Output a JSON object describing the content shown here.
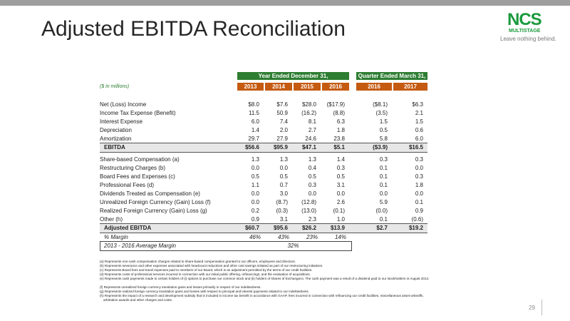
{
  "header": {
    "title": "Adjusted EBITDA Reconciliation",
    "logo": {
      "name": "NCS",
      "subname": "MULTISTAGE",
      "tagline": "Leave nothing behind."
    }
  },
  "table": {
    "units": "($ in millions)",
    "column_groups": [
      "Year Ended December 31,",
      "Quarter Ended March 31,"
    ],
    "columns": [
      "2013",
      "2014",
      "2015",
      "2016",
      "2016",
      "2017"
    ],
    "rows": [
      [
        "Net (Loss) Income",
        "$8.0",
        "$7.6",
        "$28.0",
        "($17.9)",
        "($8.1)",
        "$6.3"
      ],
      [
        "Income Tax Expense (Benefit)",
        "11.5",
        "50.9",
        "(16.2)",
        "(8.8)",
        "(3.5)",
        "2.1"
      ],
      [
        "Interest Expense",
        "6.0",
        "7.4",
        "8.1",
        "6.3",
        "1.5",
        "1.5"
      ],
      [
        "Depreciation",
        "1.4",
        "2.0",
        "2.7",
        "1.8",
        "0.5",
        "0.6"
      ],
      [
        "Amortization",
        "29.7",
        "27.9",
        "24.6",
        "23.8",
        "5.8",
        "6.0"
      ],
      [
        "EBITDA",
        "$56.6",
        "$95.9",
        "$47.1",
        "$5.1",
        "($3.9)",
        "$16.5"
      ],
      [
        "Share-based Compensation (a)",
        "1.3",
        "1.3",
        "1.3",
        "1.4",
        "0.3",
        "0.3"
      ],
      [
        "Restructuring Charges (b)",
        "0.0",
        "0.0",
        "0.4",
        "0.3",
        "0.1",
        "0.0"
      ],
      [
        "Board Fees and Expenses (c)",
        "0.5",
        "0.5",
        "0.5",
        "0.5",
        "0.1",
        "0.3"
      ],
      [
        "Professional Fees (d)",
        "1.1",
        "0.7",
        "0.3",
        "3.1",
        "0.1",
        "1.8"
      ],
      [
        "Dividends Treated as Compensation (e)",
        "0.0",
        "3.0",
        "0.0",
        "0.0",
        "0.0",
        "0.0"
      ],
      [
        "Unrealized Foreign Currency (Gain) Loss (f)",
        "0.0",
        "(8.7)",
        "(12.8)",
        "2.6",
        "5.9",
        "0.1"
      ],
      [
        "Realized Foreign Currency (Gain) Loss (g)",
        "0.2",
        "(0.3)",
        "(13.0)",
        "(0.1)",
        "(0.0)",
        "0.9"
      ],
      [
        "Other (h)",
        "0.9",
        "3.1",
        "2.3",
        "1.0",
        "0.1",
        "(0.6)"
      ],
      [
        "Adjusted EBITDA",
        "$60.7",
        "$95.6",
        "$26.2",
        "$13.9",
        "$2.7",
        "$19.2"
      ],
      [
        "% Margin",
        "46%",
        "43%",
        "23%",
        "14%"
      ]
    ],
    "average": {
      "label": "2013 - 2016 Average Margin",
      "value": "32%"
    }
  },
  "footnotes": [
    "(a) Represents non-cash compensation charges related to share-based compensation granted to our officers, employees and directors.",
    "(b) Represents severance and other expenses associated with headcount reductions and other cost savings initiated as part of our restructuring initiatives.",
    "(c) Represents Board fees and travel expenses paid to members of our Board, which is an adjustment permitted by the terms of our credit facilities.",
    "(d) Represents costs of professional services incurred in connection with our initial public offering, refinancings, and the evaluation of acquisitions.",
    "(e) Represents cash payments made to certain holders of (i) options to purchase our common stock and (ii) holders of shares of Exchangeco. The cash payment was a result of a dividend paid to our stockholders in August 2014.",
    "(f) Represents unrealized foreign currency translation gains and losses primarily in respect of our indebtedness.",
    "(g) Represents realized foreign currency translation gains and losses with respect to principal and interest payments related to our indebtedness.",
    "(h) Represents the impact of a research and development subsidy that is included in income tax benefit in accordance with GAAP, fees incurred in connection with refinancing our credit facilities, miscellaneous asset writeoffs, arbitration awards and other charges and costs."
  ],
  "page_number": "29"
}
